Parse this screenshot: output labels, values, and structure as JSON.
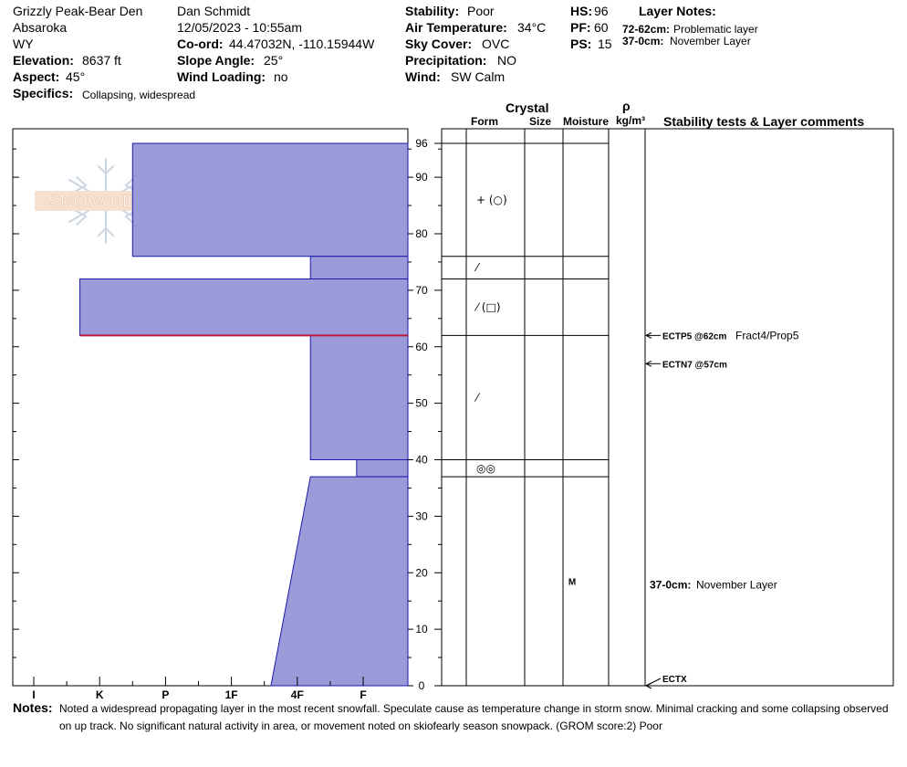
{
  "header": {
    "location": "Grizzly Peak-Bear Den",
    "range": "Absaroka",
    "state": "WY",
    "elevation_label": "Elevation:",
    "elevation_value": "8637 ft",
    "aspect_label": "Aspect:",
    "aspect_value": "45°",
    "specifics_label": "Specifics:",
    "specifics_value": "Collapsing, widespread",
    "observer": "Dan Schmidt",
    "datetime": "12/05/2023 - 10:55am",
    "coord_label": "Co-ord:",
    "coord_value": "44.47032N, -110.15944W",
    "slope_label": "Slope Angle:",
    "slope_value": "25°",
    "wind_loading_label": "Wind Loading:",
    "wind_loading_value": "no",
    "stability_label": "Stability:",
    "stability_value": "Poor",
    "air_temp_label": "Air Temperature:",
    "air_temp_value": "34°C",
    "sky_label": "Sky Cover:",
    "sky_value": "OVC",
    "precip_label": "Precipitation:",
    "precip_value": "NO",
    "wind_label": "Wind:",
    "wind_value": "SW Calm",
    "hs_label": "HS:",
    "hs_value": "96",
    "pf_label": "PF:",
    "pf_value": "60",
    "ps_label": "PS:",
    "ps_value": "15",
    "layer_notes_title": "Layer Notes:",
    "layer_notes": [
      {
        "range": "72-62cm:",
        "text": "Problematic layer"
      },
      {
        "range": "37-0cm:",
        "text": "November Layer"
      }
    ]
  },
  "logo_text": "SNOW PILOT",
  "columns": {
    "crystal": "Crystal",
    "form": "Form",
    "size": "Size",
    "moisture": "Moisture",
    "rho": "ρ",
    "density_unit": "kg/m³",
    "tests": "Stability tests & Layer comments"
  },
  "chart_data": {
    "type": "snow-profile",
    "depth_range_cm": [
      0,
      96
    ],
    "depth_ticks": [
      0,
      10,
      20,
      30,
      40,
      50,
      60,
      70,
      80,
      90,
      96
    ],
    "hardness_scale": [
      "I",
      "K",
      "P",
      "1F",
      "4F",
      "F"
    ],
    "hardness_note": "Hardness values expressed as position on the hand hardness axis (0 = I, 1 = K, 2 = P, 3 = 1F, 4 = 4F, 5 = F).",
    "layers": [
      {
        "top": 96,
        "bottom": 76,
        "hardness": 1.5
      },
      {
        "top": 76,
        "bottom": 72,
        "hardness": 4.2
      },
      {
        "top": 72,
        "bottom": 62,
        "hardness": 0.7
      },
      {
        "top": 62,
        "bottom": 40,
        "hardness": 4.2
      },
      {
        "top": 40,
        "bottom": 37,
        "hardness": 4.9
      },
      {
        "top": 37,
        "bottom": 0,
        "hardness_top": 4.2,
        "hardness_bottom": 3.6
      }
    ],
    "weak_interface_cm": 62,
    "crystal_forms": [
      {
        "depth": 86,
        "symbol": "+ (○)"
      },
      {
        "depth": 74,
        "symbol": "⁄"
      },
      {
        "depth": 67,
        "symbol": "⁄ (□)"
      },
      {
        "depth": 51,
        "symbol": "⁄"
      },
      {
        "depth": 38.5,
        "symbol": "◎◎"
      }
    ],
    "moisture": [
      {
        "depth": 18.5,
        "value": "M"
      }
    ],
    "tests": [
      {
        "depth": 62,
        "label": "ECTP5 @62cm",
        "detail": "Fract4/Prop5"
      },
      {
        "depth": 57,
        "label": "ECTN7 @57cm",
        "detail": ""
      },
      {
        "depth": 0,
        "label": "ECTX",
        "detail": ""
      }
    ],
    "layer_comments": [
      {
        "depth": 18.5,
        "range": "37-0cm:",
        "text": "November Layer"
      }
    ]
  },
  "notes": {
    "label": "Notes:",
    "line1": "Noted a widespread propagating layer in the most recent snowfall. Speculate cause as temperature change in storm snow.  Minimal cracking and some collapsing observed",
    "line2": "on up track. No significant natural activity in area, or movement noted on skiofearly season snowpack. (GROM score:2) Poor"
  }
}
